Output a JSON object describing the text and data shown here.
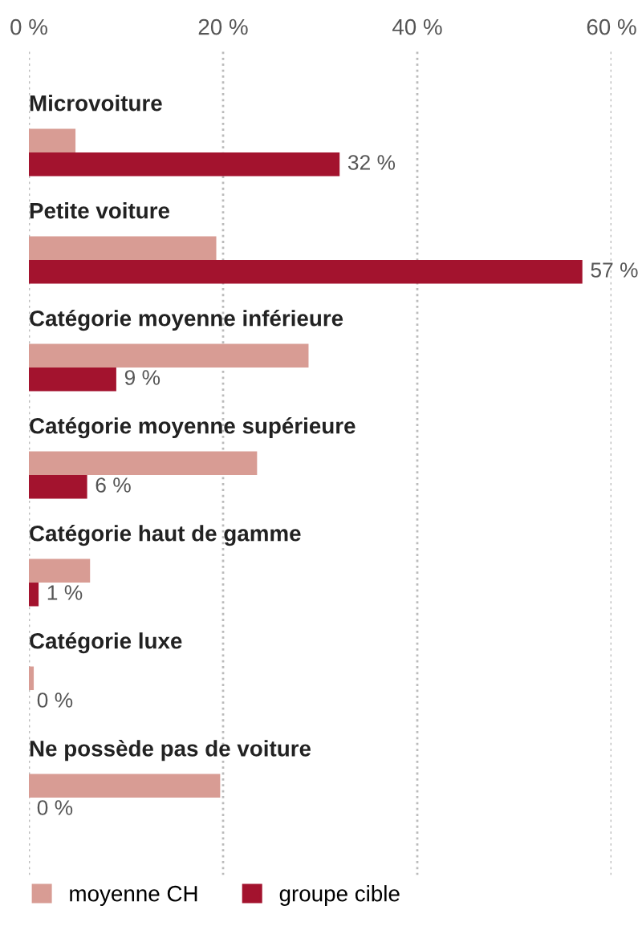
{
  "chart_data": {
    "type": "bar",
    "orientation": "horizontal",
    "categories": [
      "Microvoiture",
      "Petite voiture",
      "Catégorie moyenne inférieure",
      "Catégorie moyenne supérieure",
      "Catégorie haut de gamme",
      "Catégorie luxe",
      "Ne possède pas de voiture"
    ],
    "series": [
      {
        "name": "moyenne CH",
        "color": "#d89c94",
        "values": [
          4.8,
          19.3,
          28.8,
          23.5,
          6.3,
          0.5,
          19.7
        ]
      },
      {
        "name": "groupe cible",
        "color": "#a3132e",
        "values": [
          32,
          57,
          9,
          6,
          1,
          0,
          0
        ],
        "value_labels": [
          "32 %",
          "57 %",
          "9 %",
          "6 %",
          "1 %",
          "0 %",
          "0 %"
        ]
      }
    ],
    "xlim": [
      0,
      60
    ],
    "xticks": [
      {
        "value": 0,
        "label": "0 %"
      },
      {
        "value": 20,
        "label": "20 %"
      },
      {
        "value": 40,
        "label": "40 %"
      },
      {
        "value": 60,
        "label": "60 %"
      }
    ],
    "grid": "x",
    "legend": "bottom left"
  }
}
